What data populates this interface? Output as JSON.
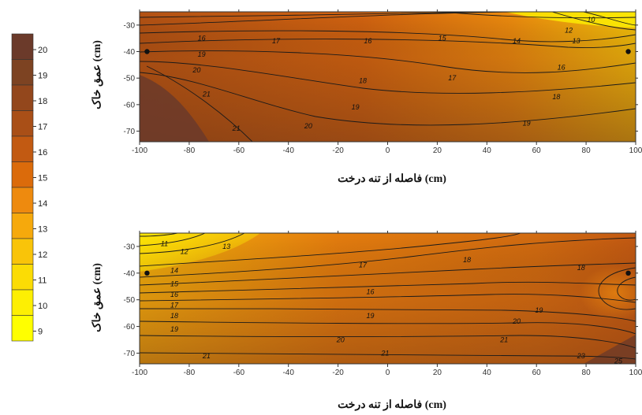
{
  "colorbar": {
    "ticks": [
      "20",
      "19",
      "18",
      "17",
      "16",
      "15",
      "14",
      "13",
      "12",
      "11",
      "10",
      "9"
    ],
    "colors": [
      "#6b3a2a",
      "#7d4322",
      "#93471c",
      "#a94f17",
      "#c25a12",
      "#db6b0b",
      "#ee8a0e",
      "#f6a90c",
      "#f9c409",
      "#fbdc05",
      "#fdef03",
      "#ffff00"
    ]
  },
  "chart_data": [
    {
      "type": "heatmap",
      "variant": "contour",
      "xlabel": "فاصله از تنه درخت (cm)",
      "ylabel": "عمق خاک (cm)",
      "x_ticks": [
        "-100",
        "-80",
        "-60",
        "-40",
        "-20",
        "0",
        "20",
        "40",
        "60",
        "80",
        "100"
      ],
      "y_ticks": [
        "-30",
        "-40",
        "-50",
        "-60",
        "-70"
      ],
      "xlim": [
        -100,
        100
      ],
      "ylim": [
        -74,
        -25
      ],
      "contour_levels": [
        10,
        12,
        13,
        14,
        15,
        16,
        17,
        18,
        19,
        20,
        21
      ],
      "contour_labels": [
        {
          "text": "10",
          "x": 82,
          "y": -28
        },
        {
          "text": "12",
          "x": 73,
          "y": -32
        },
        {
          "text": "13",
          "x": 76,
          "y": -36
        },
        {
          "text": "14",
          "x": 52,
          "y": -36
        },
        {
          "text": "15",
          "x": 22,
          "y": -35
        },
        {
          "text": "16",
          "x": -8,
          "y": -36
        },
        {
          "text": "17",
          "x": -45,
          "y": -36
        },
        {
          "text": "16",
          "x": -75,
          "y": -35
        },
        {
          "text": "19",
          "x": -75,
          "y": -41
        },
        {
          "text": "20",
          "x": -77,
          "y": -47
        },
        {
          "text": "21",
          "x": -73,
          "y": -56
        },
        {
          "text": "18",
          "x": -10,
          "y": -51
        },
        {
          "text": "17",
          "x": 26,
          "y": -50
        },
        {
          "text": "16",
          "x": 70,
          "y": -46
        },
        {
          "text": "19",
          "x": -13,
          "y": -61
        },
        {
          "text": "18",
          "x": 68,
          "y": -57
        },
        {
          "text": "20",
          "x": -32,
          "y": -68
        },
        {
          "text": "21",
          "x": -61,
          "y": -69
        },
        {
          "text": "19",
          "x": 56,
          "y": -67
        }
      ],
      "points": [
        {
          "x": -97,
          "y": -40
        },
        {
          "x": 97,
          "y": -40
        }
      ]
    },
    {
      "type": "heatmap",
      "variant": "contour",
      "xlabel": "فاصله از تنه درخت (cm)",
      "ylabel": "عمق خاک (cm)",
      "x_ticks": [
        "-100",
        "-80",
        "-60",
        "-40",
        "-20",
        "0",
        "20",
        "40",
        "60",
        "80",
        "100"
      ],
      "y_ticks": [
        "-30",
        "-40",
        "-50",
        "-60",
        "-70"
      ],
      "xlim": [
        -100,
        100
      ],
      "ylim": [
        -74,
        -25
      ],
      "contour_levels": [
        11,
        12,
        13,
        14,
        15,
        16,
        17,
        18,
        19,
        20,
        21,
        23,
        25
      ],
      "contour_labels": [
        {
          "text": "11",
          "x": -90,
          "y": -29
        },
        {
          "text": "12",
          "x": -82,
          "y": -32
        },
        {
          "text": "13",
          "x": -65,
          "y": -30
        },
        {
          "text": "14",
          "x": -86,
          "y": -39
        },
        {
          "text": "15",
          "x": -86,
          "y": -44
        },
        {
          "text": "16",
          "x": -86,
          "y": -48
        },
        {
          "text": "17",
          "x": -86,
          "y": -52
        },
        {
          "text": "18",
          "x": -86,
          "y": -56
        },
        {
          "text": "19",
          "x": -86,
          "y": -61
        },
        {
          "text": "17",
          "x": -10,
          "y": -37
        },
        {
          "text": "18",
          "x": 32,
          "y": -35
        },
        {
          "text": "16",
          "x": -7,
          "y": -47
        },
        {
          "text": "19",
          "x": -7,
          "y": -56
        },
        {
          "text": "20",
          "x": -19,
          "y": -65
        },
        {
          "text": "21",
          "x": -73,
          "y": -71
        },
        {
          "text": "21",
          "x": -1,
          "y": -70
        },
        {
          "text": "20",
          "x": 52,
          "y": -58
        },
        {
          "text": "21",
          "x": 47,
          "y": -65
        },
        {
          "text": "18",
          "x": 78,
          "y": -38
        },
        {
          "text": "19",
          "x": 61,
          "y": -54
        },
        {
          "text": "23",
          "x": 78,
          "y": -71
        },
        {
          "text": "25",
          "x": 93,
          "y": -73
        }
      ],
      "points": [
        {
          "x": -97,
          "y": -40
        },
        {
          "x": 97,
          "y": -40
        }
      ]
    }
  ]
}
